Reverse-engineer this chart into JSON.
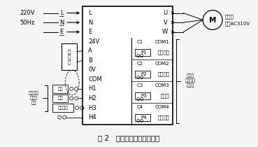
{
  "title": "图 2   门机变频器系统接线图",
  "title_fontsize": 7.5,
  "bg_color": "#f5f5f5",
  "font_size": 6.5,
  "line_color": "#000000",
  "left_pins": [
    "L",
    "N",
    "E",
    "24V",
    "A",
    "B",
    "0V",
    "COM",
    "H1",
    "H2",
    "H3",
    "H4"
  ],
  "right_top_pins": [
    "U",
    "V",
    "W"
  ],
  "groups": [
    {
      "c": "C1",
      "com": "COM1",
      "p": "P1",
      "label": "关门到位"
    },
    {
      "c": "C2",
      "com": "COM2",
      "p": "P2",
      "label": "开门到位"
    },
    {
      "c": "C3",
      "com": "COM3",
      "p": "P3",
      "label": "门故障"
    },
    {
      "c": "C4",
      "com": "COM4",
      "p": "P4",
      "label": "系统故障"
    }
  ],
  "sw_labels": [
    "关门",
    "开门",
    "中速关门"
  ],
  "encoder_label": "编\n码\n器",
  "motor_label1": "电动机",
  "motor_label2": "三相AC310V",
  "brace_label": "继电器\n接点输出\n可定义",
  "left_label": "出厂设定\n可自由\n定义",
  "v220": "220V",
  "hz50": "50Hz"
}
